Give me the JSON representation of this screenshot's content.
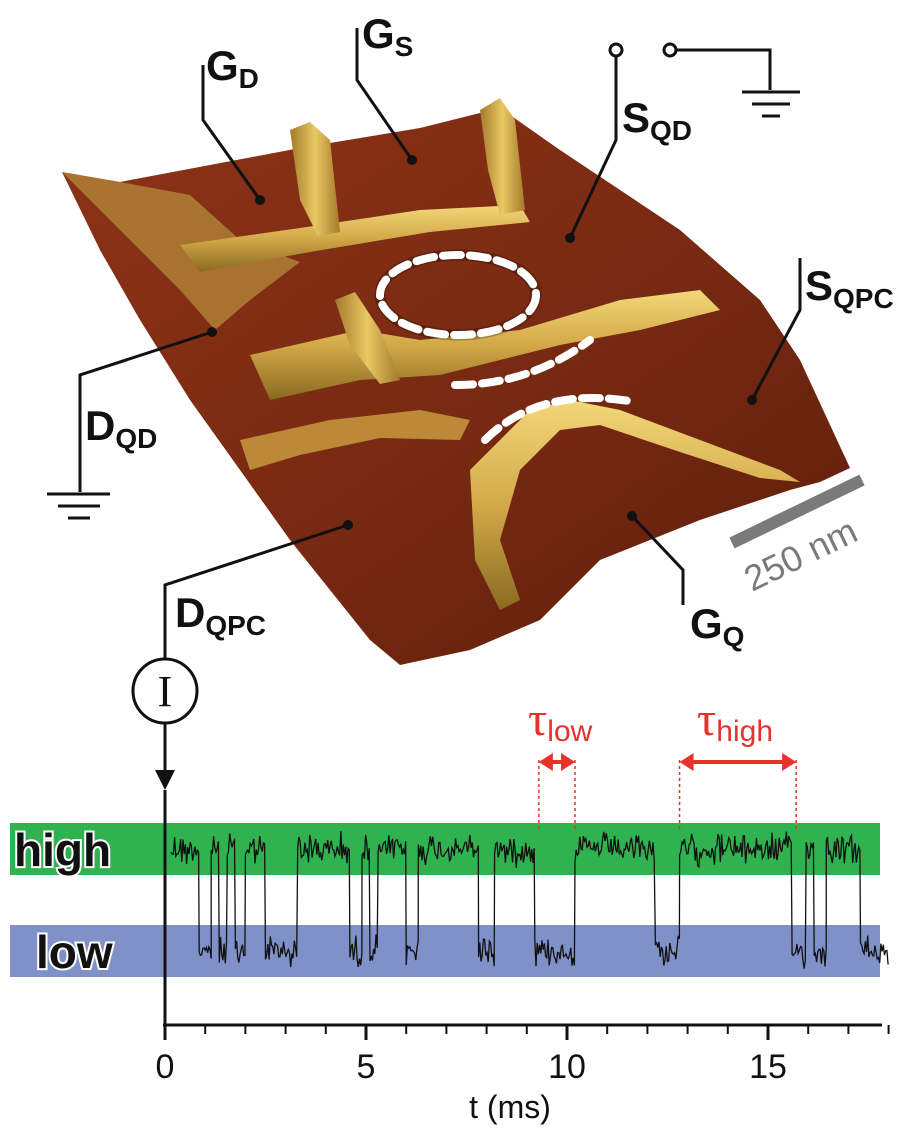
{
  "device_labels": {
    "g_d": {
      "main": "G",
      "sub": "D"
    },
    "g_s": {
      "main": "G",
      "sub": "S"
    },
    "s_qd": {
      "main": "S",
      "sub": "QD"
    },
    "s_qpc": {
      "main": "S",
      "sub": "QPC"
    },
    "d_qd": {
      "main": "D",
      "sub": "QD"
    },
    "d_qpc": {
      "main": "D",
      "sub": "QPC"
    },
    "g_q": {
      "main": "G",
      "sub": "Q"
    }
  },
  "scale_bar": "250 nm",
  "current_meter_symbol": "I",
  "tau_low": {
    "main": "τ",
    "sub": "low"
  },
  "tau_high": {
    "main": "τ",
    "sub": "high"
  },
  "colors": {
    "surface_dark": "#7a2a14",
    "surface_mid": "#9c3a1c",
    "ridge": "#d6b04a",
    "high_band": "#2fb24f",
    "low_band": "#8091c9",
    "annotation_red": "#e8312a",
    "scale_gray": "#7a7a7a"
  },
  "chart_data": {
    "type": "line",
    "xlabel": "t (ms)",
    "x_ticks": [
      "0",
      "5",
      "10",
      "15"
    ],
    "xlim": [
      0,
      18.3
    ],
    "levels": [
      "high",
      "low"
    ],
    "series": [
      {
        "segments": [
          {
            "level": "high",
            "t_start": 0.15,
            "t_end": 0.85
          },
          {
            "level": "low",
            "t_start": 0.85,
            "t_end": 1.15
          },
          {
            "level": "high",
            "t_start": 1.15,
            "t_end": 1.35
          },
          {
            "level": "low",
            "t_start": 1.35,
            "t_end": 1.55
          },
          {
            "level": "high",
            "t_start": 1.55,
            "t_end": 1.75
          },
          {
            "level": "low",
            "t_start": 1.75,
            "t_end": 2.0
          },
          {
            "level": "high",
            "t_start": 2.0,
            "t_end": 2.5
          },
          {
            "level": "low",
            "t_start": 2.5,
            "t_end": 3.3
          },
          {
            "level": "high",
            "t_start": 3.3,
            "t_end": 4.6
          },
          {
            "level": "low",
            "t_start": 4.6,
            "t_end": 4.9
          },
          {
            "level": "high",
            "t_start": 4.9,
            "t_end": 5.1
          },
          {
            "level": "low",
            "t_start": 5.1,
            "t_end": 5.3
          },
          {
            "level": "high",
            "t_start": 5.3,
            "t_end": 6.0
          },
          {
            "level": "low",
            "t_start": 6.0,
            "t_end": 6.3
          },
          {
            "level": "high",
            "t_start": 6.3,
            "t_end": 7.8
          },
          {
            "level": "low",
            "t_start": 7.8,
            "t_end": 8.2
          },
          {
            "level": "high",
            "t_start": 8.2,
            "t_end": 9.2
          },
          {
            "level": "low",
            "t_start": 9.2,
            "t_end": 10.2
          },
          {
            "level": "high",
            "t_start": 10.2,
            "t_end": 12.2
          },
          {
            "level": "low",
            "t_start": 12.2,
            "t_end": 12.8
          },
          {
            "level": "high",
            "t_start": 12.8,
            "t_end": 15.6
          },
          {
            "level": "low",
            "t_start": 15.6,
            "t_end": 15.95
          },
          {
            "level": "high",
            "t_start": 15.95,
            "t_end": 16.15
          },
          {
            "level": "low",
            "t_start": 16.15,
            "t_end": 16.45
          },
          {
            "level": "high",
            "t_start": 16.45,
            "t_end": 17.3
          },
          {
            "level": "low",
            "t_start": 17.3,
            "t_end": 18.0
          }
        ]
      }
    ],
    "annotations": [
      {
        "label": "τlow",
        "t_start": 9.3,
        "t_end": 10.2
      },
      {
        "label": "τhigh",
        "t_start": 12.8,
        "t_end": 15.7
      }
    ]
  }
}
